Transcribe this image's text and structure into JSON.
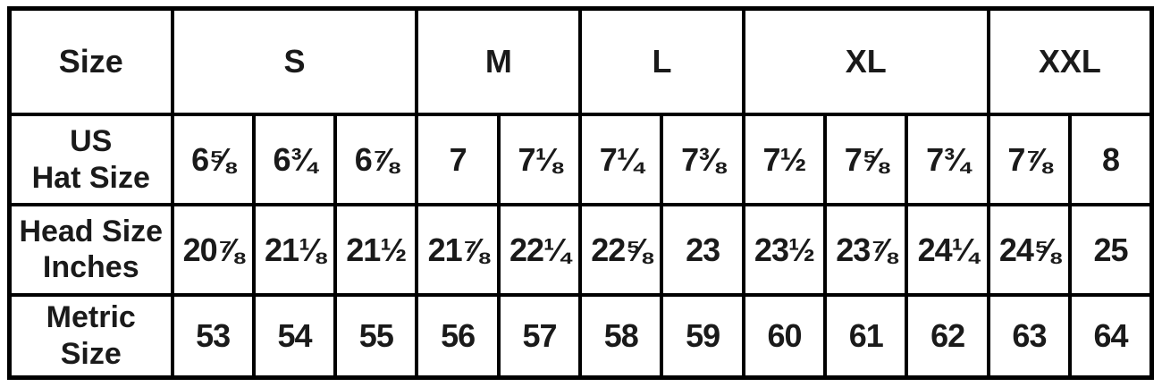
{
  "chart_data": {
    "type": "table",
    "corner_label": "Size",
    "size_groups": [
      {
        "label": "S",
        "colspan": 3
      },
      {
        "label": "M",
        "colspan": 2
      },
      {
        "label": "L",
        "colspan": 2
      },
      {
        "label": "XL",
        "colspan": 3
      },
      {
        "label": "XXL",
        "colspan": 2
      }
    ],
    "rows": [
      {
        "label": "US\nHat Size",
        "values": [
          "6⅝",
          "6¾",
          "6⅞",
          "7",
          "7⅛",
          "7¼",
          "7⅜",
          "7½",
          "7⅝",
          "7¾",
          "7⅞",
          "8"
        ]
      },
      {
        "label": "Head Size\nInches",
        "values": [
          "20⅞",
          "21⅛",
          "21½",
          "21⅞",
          "22¼",
          "22⅝",
          "23",
          "23½",
          "23⅞",
          "24¼",
          "24⅝",
          "25"
        ]
      },
      {
        "label": "Metric\nSize",
        "values": [
          "53",
          "54",
          "55",
          "56",
          "57",
          "58",
          "59",
          "60",
          "61",
          "62",
          "63",
          "64"
        ]
      }
    ],
    "layout_hints": {
      "columns_per_group": [
        3,
        2,
        2,
        3,
        2
      ],
      "grid": "on",
      "borders": "heavy black"
    }
  },
  "colors": {
    "border": "#000000",
    "text": "#1a1a1a",
    "background": "#ffffff"
  }
}
